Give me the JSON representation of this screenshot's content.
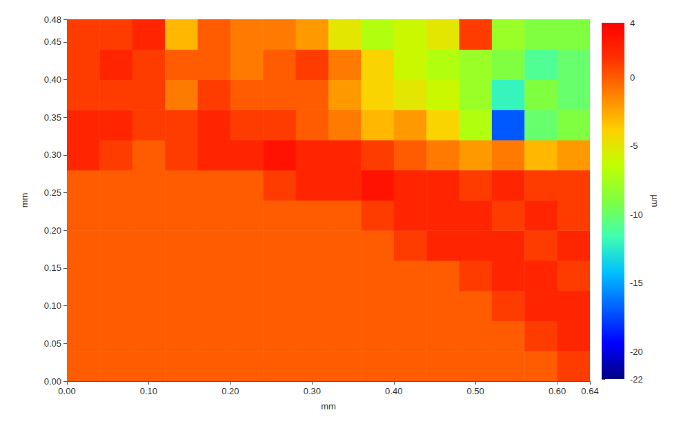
{
  "chart_data": {
    "type": "heatmap",
    "x_label": "mm",
    "y_label": "mm",
    "xlim": [
      0,
      0.64
    ],
    "ylim": [
      0,
      0.48
    ],
    "xticks": [
      {
        "value": 0,
        "label": "0.00"
      },
      {
        "value": 0.1,
        "label": "0.10"
      },
      {
        "value": 0.2,
        "label": "0.20"
      },
      {
        "value": 0.3,
        "label": "0.30"
      },
      {
        "value": 0.4,
        "label": "0.40"
      },
      {
        "value": 0.5,
        "label": "0.50"
      },
      {
        "value": 0.6,
        "label": "0.60"
      },
      {
        "value": 0.64,
        "label": "0.64"
      }
    ],
    "yticks": [
      {
        "value": 0,
        "label": "0.00"
      },
      {
        "value": 0.05,
        "label": "0.05"
      },
      {
        "value": 0.1,
        "label": "0.10"
      },
      {
        "value": 0.15,
        "label": "0.15"
      },
      {
        "value": 0.2,
        "label": "0.20"
      },
      {
        "value": 0.25,
        "label": "0.25"
      },
      {
        "value": 0.3,
        "label": "0.30"
      },
      {
        "value": 0.35,
        "label": "0.35"
      },
      {
        "value": 0.4,
        "label": "0.40"
      },
      {
        "value": 0.45,
        "label": "0.45"
      },
      {
        "value": 0.48,
        "label": "0.48"
      }
    ],
    "x_edges": [
      0,
      0.04,
      0.08,
      0.12,
      0.16,
      0.2,
      0.24,
      0.28,
      0.32,
      0.36,
      0.4,
      0.44,
      0.48,
      0.52,
      0.56,
      0.6,
      0.64
    ],
    "y_edges": [
      0,
      0.04,
      0.08,
      0.12,
      0.16,
      0.2,
      0.24,
      0.28,
      0.32,
      0.36,
      0.4,
      0.44,
      0.48
    ],
    "z": [
      [
        0,
        0,
        0,
        0,
        0,
        0,
        0,
        0,
        0,
        0,
        0,
        0,
        0,
        0,
        0,
        1
      ],
      [
        0,
        0,
        0,
        0,
        0,
        0,
        0,
        0,
        0,
        0,
        0,
        0,
        0,
        0,
        1,
        2
      ],
      [
        0,
        0,
        0,
        0,
        0,
        0,
        0,
        0,
        0,
        0,
        0,
        0,
        0,
        1,
        2,
        2
      ],
      [
        0,
        0,
        0,
        0,
        0,
        0,
        0,
        0,
        0,
        0,
        0,
        0,
        1,
        2,
        2,
        1
      ],
      [
        0,
        0,
        0,
        0,
        0,
        0,
        0,
        0,
        0,
        0,
        1,
        2,
        2,
        2,
        1,
        2
      ],
      [
        0,
        0,
        0,
        0,
        0,
        0,
        0,
        0,
        0,
        1,
        2,
        2,
        2,
        1,
        2,
        1
      ],
      [
        0,
        0,
        0,
        0,
        0,
        0,
        1,
        2,
        2,
        3,
        2,
        2,
        1,
        2,
        1,
        1
      ],
      [
        2,
        1,
        0,
        1,
        2,
        2,
        3,
        2,
        2,
        1,
        0,
        -1,
        -2,
        -1,
        -3,
        -2
      ],
      [
        2,
        2,
        1,
        1,
        2,
        1,
        1,
        0,
        -1,
        -3,
        -2,
        -4,
        -7,
        -17,
        -10,
        -9
      ],
      [
        1,
        1,
        1,
        -1,
        1,
        0,
        0,
        0,
        -2,
        -4,
        -5,
        -6,
        -8,
        -12,
        -9,
        -10
      ],
      [
        1,
        2,
        1,
        0,
        0,
        -1,
        0,
        1,
        -1,
        -4,
        -6,
        -7,
        -8,
        -9,
        -11,
        -10
      ],
      [
        1,
        1,
        2,
        -3,
        0,
        -1,
        -1,
        -2,
        -5,
        -7,
        -6,
        -5,
        1,
        -8,
        -9,
        -9
      ]
    ],
    "colorbar_label": "µm",
    "colorbar_range": [
      -22,
      4
    ],
    "colorbar_ticks": [
      4,
      0,
      -5,
      -10,
      -15,
      -20,
      -22
    ],
    "grid": false
  }
}
